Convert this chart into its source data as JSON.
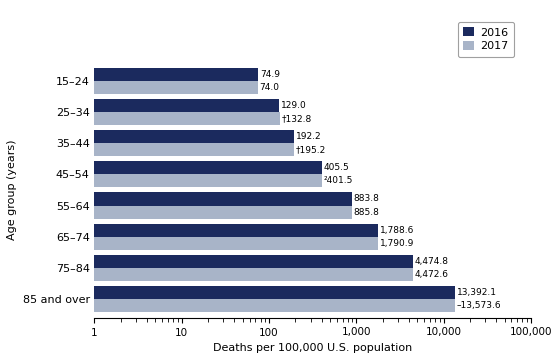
{
  "categories": [
    "15–24",
    "25–34",
    "35–44",
    "45–54",
    "55–64",
    "65–74",
    "75–84",
    "85 and over"
  ],
  "values_2016": [
    74.9,
    129.0,
    192.2,
    405.5,
    883.8,
    1788.6,
    4474.8,
    13392.1
  ],
  "values_2017": [
    74.0,
    132.8,
    195.2,
    401.5,
    885.8,
    1790.9,
    4472.6,
    13573.6
  ],
  "labels_2016": [
    "74.9",
    "129.0",
    "192.2",
    "405.5",
    "883.8",
    "1,788.6",
    "4,474.8",
    "13,392.1"
  ],
  "labels_2017": [
    "74.0",
    "†132.8",
    "†195.2",
    "²401.5",
    "885.8",
    "1,790.9",
    "4,472.6",
    "–13,573.6"
  ],
  "color_2016": "#1b2a5e",
  "color_2017": "#a8b4c8",
  "xlabel": "Deaths per 100,000 U.S. population",
  "ylabel": "Age group (years)",
  "legend_2016": "2016",
  "legend_2017": "2017",
  "xlim_min": 1,
  "xlim_max": 100000,
  "bar_height": 0.42
}
